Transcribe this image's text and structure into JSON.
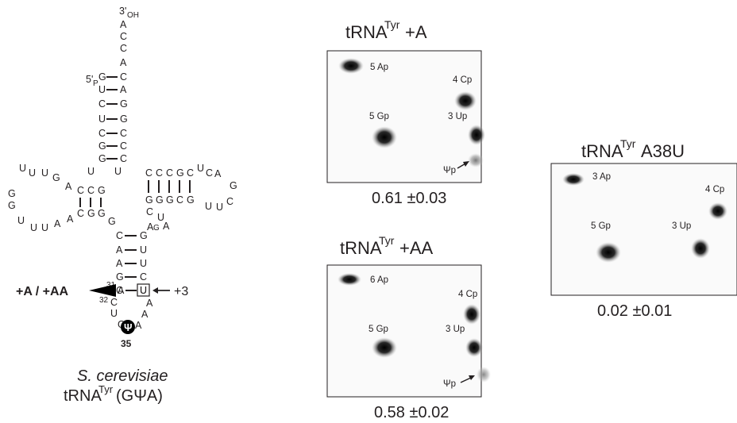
{
  "structure": {
    "three_prime": "3'",
    "three_prime_sub": "OH",
    "five_prime": "5'",
    "five_prime_sub": "P",
    "acceptor_5p": [
      "G",
      "U",
      "C",
      "U",
      "C",
      "G",
      "G"
    ],
    "acceptor_3p": [
      "C",
      "A",
      "G",
      "G",
      "C",
      "C",
      "C"
    ],
    "acceptor_tail": [
      "A",
      "C",
      "C",
      "A"
    ],
    "d_stem_top": [
      "C",
      "C",
      "G"
    ],
    "d_stem_bottom": [
      "G",
      "G",
      "C"
    ],
    "d_loop": [
      "A",
      "G",
      "U",
      "U",
      "G",
      "G",
      "U",
      "U",
      "U",
      "A"
    ],
    "t_stem_top": [
      "C",
      "C",
      "C",
      "G",
      "C"
    ],
    "t_stem_bottom": [
      "G",
      "G",
      "G",
      "C",
      "G"
    ],
    "t_loop": [
      "U",
      "C",
      "A",
      "G",
      "C",
      "U",
      "U"
    ],
    "junction": [
      "A",
      "U",
      "G",
      "C",
      "U",
      "A",
      "G"
    ],
    "anticodon_5p": [
      "C",
      "A",
      "A",
      "G",
      "C"
    ],
    "anticodon_3p": [
      "G",
      "U",
      "U",
      "C",
      "U"
    ],
    "pos31": "31",
    "pos32": "32",
    "nt31": "A",
    "nt32": "C",
    "boxed_nt": "U",
    "loop_nt": [
      "U",
      "G",
      "A",
      "A"
    ],
    "psi": "Ψ",
    "psi_pos": "35",
    "insertion_label": "+A / +AA",
    "plus3_label": "+3",
    "species": "S. cerevisiae",
    "trna_name": "tRNA",
    "trna_sup": "Tyr",
    "trna_suffix": " (GΨA)"
  },
  "panels": {
    "a": {
      "title_main": "tRNA",
      "title_sup": "Tyr",
      "title_suffix": "+A",
      "spot_labels": [
        "5 Ap",
        "4 Cp",
        "5 Gp",
        "3 Up",
        "Ψp"
      ],
      "ratio": "0.61 ±0.03"
    },
    "aa": {
      "title_main": "tRNA",
      "title_sup": "Tyr",
      "title_suffix": "+AA",
      "spot_labels": [
        "6 Ap",
        "4 Cp",
        "5 Gp",
        "3 Up",
        "Ψp"
      ],
      "ratio": "0.58 ±0.02"
    },
    "a38u": {
      "title_main": "tRNA",
      "title_sup": "Tyr",
      "title_suffix": "A38U",
      "spot_labels": [
        "3 Ap",
        "4 Cp",
        "5 Gp",
        "3 Up"
      ],
      "ratio": "0.02 ±0.01"
    }
  }
}
